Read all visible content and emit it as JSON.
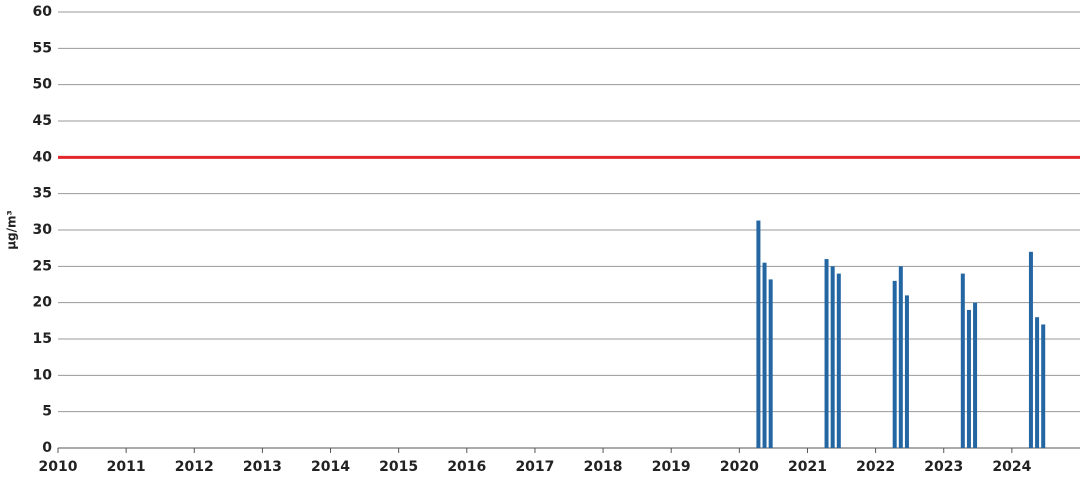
{
  "chart_data": {
    "type": "bar",
    "y_label": "µg/m³",
    "categories": [
      "2010",
      "2011",
      "2012",
      "2013",
      "2014",
      "2015",
      "2016",
      "2017",
      "2018",
      "2019",
      "2020",
      "2021",
      "2022",
      "2023",
      "2024"
    ],
    "series": [
      {
        "color": "#2366a2",
        "values": [
          null,
          null,
          null,
          null,
          null,
          null,
          null,
          null,
          null,
          null,
          31.3,
          26,
          23,
          24,
          27
        ]
      },
      {
        "color": "#2366a2",
        "values": [
          null,
          null,
          null,
          null,
          null,
          null,
          null,
          null,
          null,
          null,
          25.5,
          25,
          25,
          19,
          18
        ]
      },
      {
        "color": "#2366a2",
        "values": [
          null,
          null,
          null,
          null,
          null,
          null,
          null,
          null,
          null,
          null,
          23.2,
          24,
          21,
          20,
          17
        ]
      }
    ],
    "limit_line": {
      "value": 40,
      "color": "#e3262b"
    },
    "ylim": [
      0,
      60
    ],
    "yticks": [
      0,
      5,
      10,
      15,
      20,
      25,
      30,
      35,
      40,
      45,
      50,
      55,
      60
    ],
    "grid": true
  }
}
